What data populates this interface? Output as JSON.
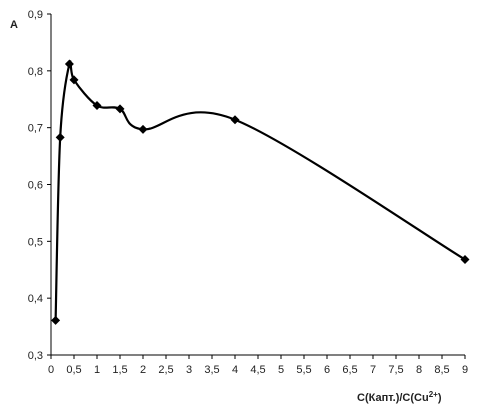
{
  "chart_data": {
    "type": "line",
    "title": "",
    "ylabel": "A",
    "xlabel_base": "C(Капт.)/C(Cu",
    "xlabel_sup": "2+",
    "xlabel_end": ")",
    "xlim": [
      0,
      9
    ],
    "ylim": [
      0.3,
      0.9
    ],
    "grid": false,
    "legend": "none",
    "smoothed": true,
    "line_color": "#000000",
    "marker": "diamond",
    "x_ticks": [
      "0",
      "0,5",
      "1",
      "1,5",
      "2",
      "2,5",
      "3",
      "3,5",
      "4",
      "4,5",
      "5",
      "5,5",
      "6",
      "6,5",
      "7",
      "7,5",
      "8",
      "8,5",
      "9"
    ],
    "y_ticks": [
      "0,3",
      "0,4",
      "0,5",
      "0,6",
      "0,7",
      "0,8",
      "0,9"
    ],
    "series": [
      {
        "x": [
          0.1,
          0.2,
          0.4,
          0.5,
          1.0,
          1.5,
          2.0,
          4.0,
          9.0
        ],
        "y": [
          0.361,
          0.683,
          0.812,
          0.784,
          0.739,
          0.733,
          0.697,
          0.714,
          0.468
        ]
      }
    ]
  }
}
